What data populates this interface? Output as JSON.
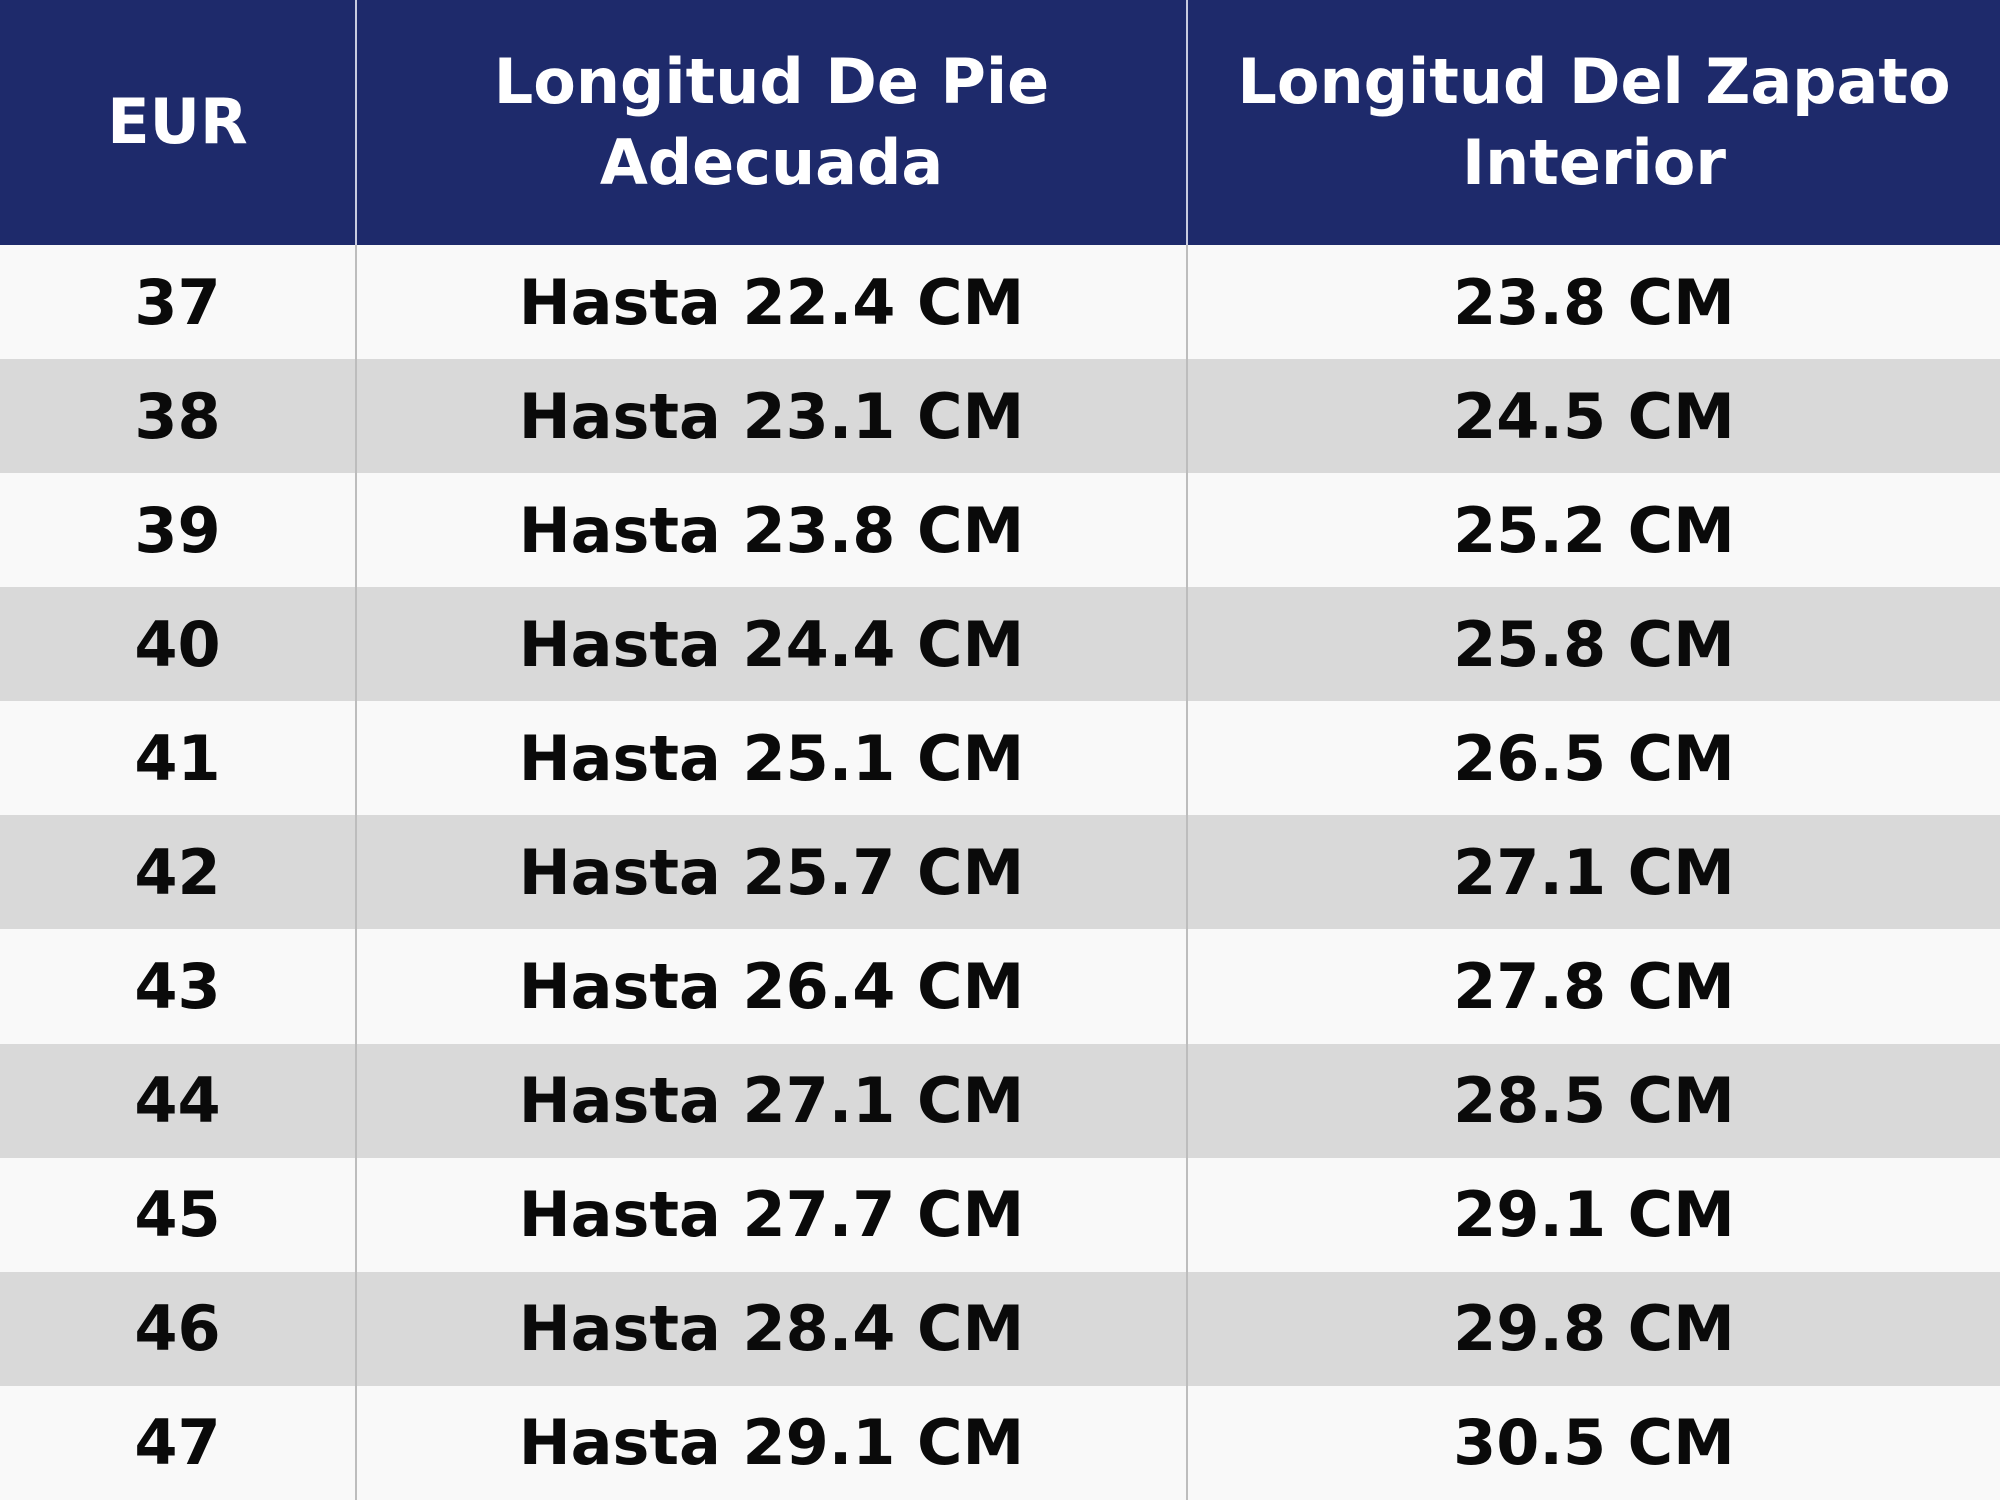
{
  "table": {
    "header": [
      "EUR",
      "Longitud De Pie Adecuada",
      "Longitud Del Zapato Interior"
    ],
    "rows": [
      [
        "37",
        "Hasta 22.4 CM",
        "23.8 CM"
      ],
      [
        "38",
        "Hasta 23.1 CM",
        "24.5 CM"
      ],
      [
        "39",
        "Hasta 23.8 CM",
        "25.2 CM"
      ],
      [
        "40",
        "Hasta 24.4 CM",
        "25.8 CM"
      ],
      [
        "41",
        "Hasta 25.1 CM",
        "26.5 CM"
      ],
      [
        "42",
        "Hasta 25.7 CM",
        "27.1 CM"
      ],
      [
        "43",
        "Hasta 26.4 CM",
        "27.8 CM"
      ],
      [
        "44",
        "Hasta 27.1 CM",
        "28.5 CM"
      ],
      [
        "45",
        "Hasta 27.7 CM",
        "29.1 CM"
      ],
      [
        "46",
        "Hasta 28.4 CM",
        "29.8 CM"
      ],
      [
        "47",
        "Hasta 29.1 CM",
        "30.5 CM"
      ]
    ]
  }
}
